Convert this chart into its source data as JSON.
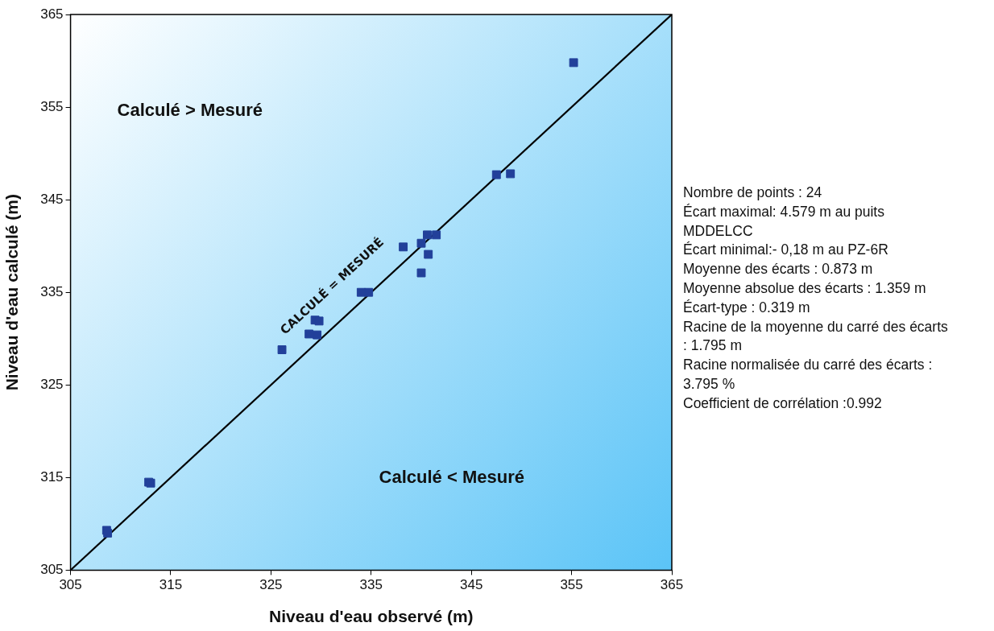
{
  "chart_data": {
    "type": "scatter",
    "xlabel": "Niveau d'eau observé (m)",
    "ylabel": "Niveau d'eau calculé (m)",
    "xlim": [
      305,
      365
    ],
    "ylim": [
      305,
      365
    ],
    "xticks": [
      305,
      315,
      325,
      335,
      345,
      355,
      365
    ],
    "yticks": [
      305,
      315,
      325,
      335,
      345,
      355,
      365
    ],
    "grid": false,
    "legend": false,
    "marker": "square",
    "series": [
      {
        "type": "scatter",
        "color": "#22409a",
        "x": [
          308.6,
          308.7,
          312.8,
          313.0,
          326.1,
          329.4,
          329.8,
          328.8,
          329.6,
          334.0,
          334.75,
          338.2,
          340.0,
          340.6,
          341.5,
          340.7,
          340.0,
          347.5,
          348.9,
          355.2
        ],
        "values": [
          309.3,
          309.0,
          314.5,
          314.4,
          328.8,
          332.0,
          331.9,
          330.5,
          330.4,
          335.0,
          335.0,
          339.9,
          340.3,
          341.2,
          341.2,
          339.1,
          337.1,
          347.7,
          347.8,
          359.8
        ]
      },
      {
        "type": "line",
        "color": "#000000",
        "marker": "none",
        "line_style": "solid",
        "x": [
          305,
          365
        ],
        "values": [
          305,
          365
        ]
      }
    ],
    "annotations": [
      "Calculé > Mesuré",
      "Calculé < Mesuré",
      "CALCULÉ = MESURÉ",
      "Nombre de points : 24",
      "Écart maximal:  4.579 m au puits MDDELCC",
      "Écart minimal:- 0,18 m au PZ-6R",
      "Moyenne des écarts : 0.873 m",
      "Moyenne absolue des écarts : 1.359 m",
      "Écart-type : 0.319 m",
      "Racine de la moyenne du carré des écarts : 1.795 m",
      "Racine normalisée du carré des écarts : 3.795 %",
      "Coefficient de corrélation :0.992"
    ]
  }
}
